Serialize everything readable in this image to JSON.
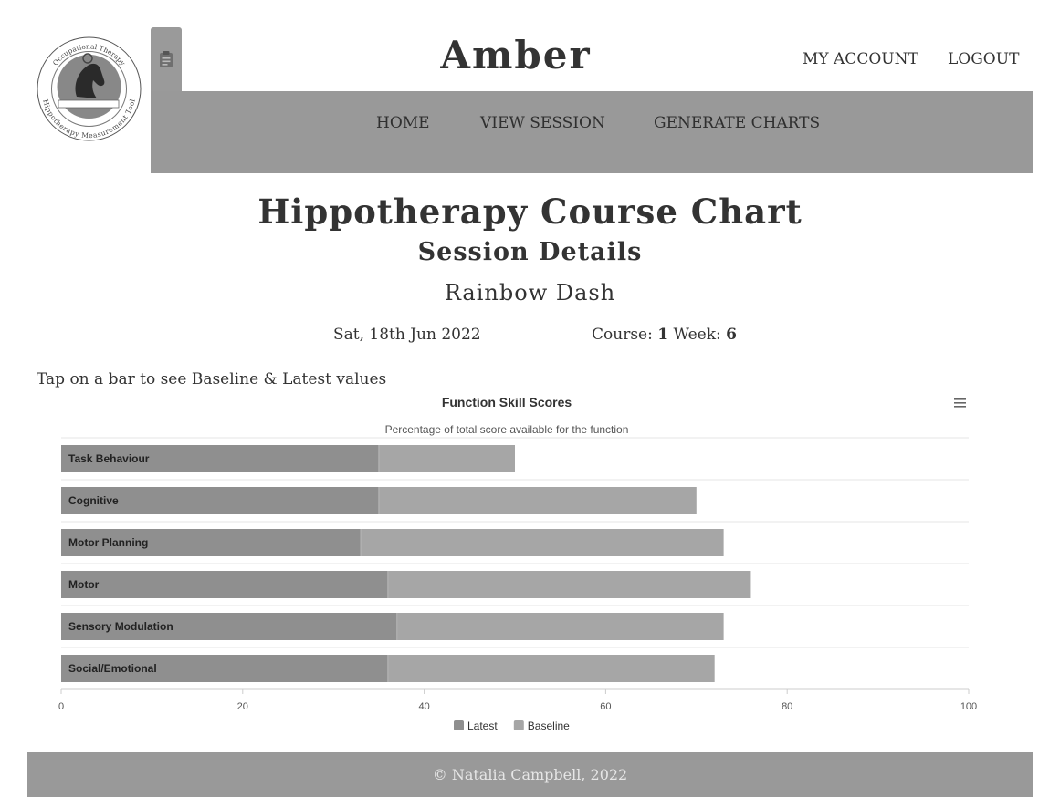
{
  "header": {
    "logo": {
      "ring_top_text": "Occupational Therapy",
      "ring_bottom_text": "Hippotherapy Measurement Tool",
      "icon": "horse-head-logo"
    },
    "clipboard_icon": "clipboard-icon",
    "brand": "Amber",
    "my_account": "MY ACCOUNT",
    "logout": "LOGOUT"
  },
  "nav": {
    "home": "HOME",
    "view_session": "VIEW SESSION",
    "generate_charts": "GENERATE CHARTS"
  },
  "page": {
    "title": "Hippotherapy Course Chart",
    "subtitle": "Session Details",
    "horse_name": "Rainbow Dash",
    "date": "Sat, 18th Jun 2022",
    "course_label": "Course:",
    "course_value": "1",
    "week_label": "Week:",
    "week_value": "6",
    "hint": "Tap on a bar to see Baseline & Latest values"
  },
  "chart_data": {
    "type": "bar",
    "orientation": "horizontal",
    "title": "Function Skill Scores",
    "subtitle": "Percentage of total score available for the function",
    "menu_icon": "hamburger-menu-icon",
    "categories": [
      "Task Behaviour",
      "Cognitive",
      "Motor Planning",
      "Motor",
      "Sensory Modulation",
      "Social/Emotional"
    ],
    "series": [
      {
        "name": "Latest",
        "color": "#8f8f8f",
        "values": [
          35,
          35,
          33,
          36,
          37,
          36
        ]
      },
      {
        "name": "Baseline",
        "color": "#a6a6a6",
        "values": [
          50,
          70,
          73,
          76,
          73,
          72
        ]
      }
    ],
    "xlim": [
      0,
      100
    ],
    "xticks": [
      0,
      20,
      40,
      60,
      80,
      100
    ],
    "grid": true,
    "legend_position": "bottom-center"
  },
  "footer": {
    "text": "© Natalia Campbell, 2022"
  },
  "colors": {
    "navbar": "#999999",
    "footer": "#999999",
    "footer_text": "#e6e6e6",
    "text": "#333333"
  }
}
